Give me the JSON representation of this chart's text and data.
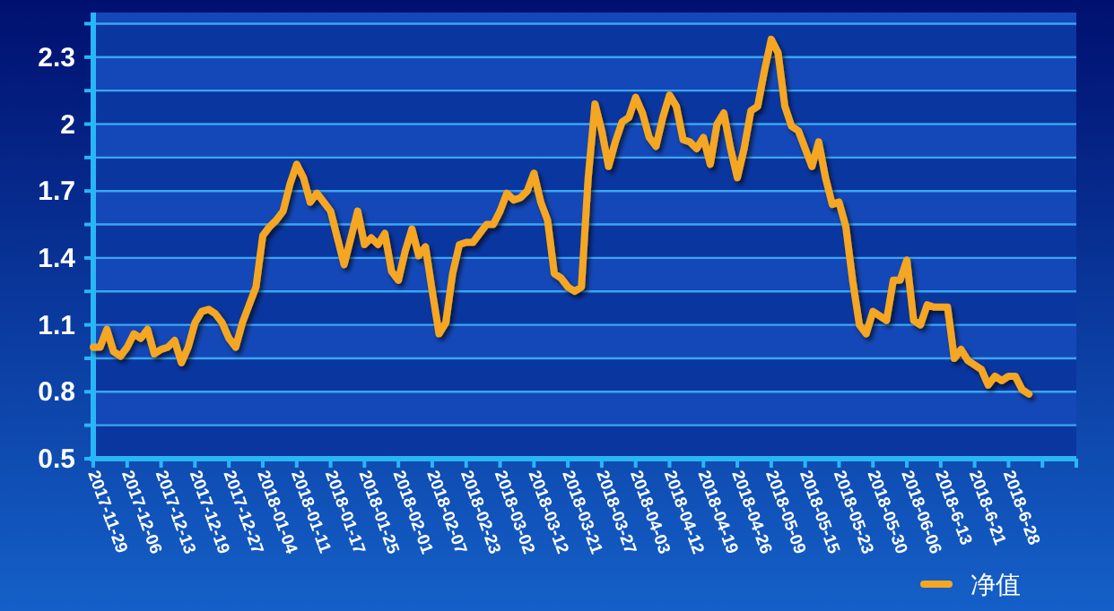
{
  "chart_data": {
    "type": "line",
    "categories": [
      "2017-11-29",
      null,
      null,
      null,
      null,
      "2017-12-06",
      null,
      null,
      null,
      null,
      "2017-12-13",
      null,
      null,
      null,
      null,
      "2017-12-19",
      null,
      null,
      null,
      null,
      "2017-12-27",
      null,
      null,
      null,
      null,
      "2018-01-04",
      null,
      null,
      null,
      null,
      "2018-01-11",
      null,
      null,
      null,
      null,
      "2018-01-17",
      null,
      null,
      null,
      null,
      "2018-01-25",
      null,
      null,
      null,
      null,
      "2018-02-01",
      null,
      null,
      null,
      null,
      "2018-02-07",
      null,
      null,
      null,
      null,
      "2018-02-23",
      null,
      null,
      null,
      null,
      "2018-03-02",
      null,
      null,
      null,
      null,
      "2018-03-12",
      null,
      null,
      null,
      null,
      "2018-03-21",
      null,
      null,
      null,
      null,
      "2018-03-27",
      null,
      null,
      null,
      null,
      "2018-04-03",
      null,
      null,
      null,
      null,
      "2018-04-12",
      null,
      null,
      null,
      null,
      "2018-04-19",
      null,
      null,
      null,
      null,
      "2018-04-26",
      null,
      null,
      null,
      null,
      "2018-05-09",
      null,
      null,
      null,
      null,
      "2018-05-15",
      null,
      null,
      null,
      null,
      "2018-05-23",
      null,
      null,
      null,
      null,
      "2018-05-30",
      null,
      null,
      null,
      null,
      "2018-06-06",
      null,
      null,
      null,
      null,
      "2018-6-13",
      null,
      null,
      null,
      null,
      "2018-6-21",
      null,
      null,
      null,
      null,
      "2018-6-28",
      null,
      null,
      null,
      null,
      null,
      null,
      null,
      null,
      null,
      null
    ],
    "series": [
      {
        "name": "净值",
        "color": "#f5a623",
        "values": [
          1.0,
          1.0,
          1.08,
          0.98,
          0.96,
          1.0,
          1.06,
          1.04,
          1.08,
          0.97,
          0.99,
          1.0,
          1.03,
          0.93,
          1.0,
          1.11,
          1.16,
          1.17,
          1.15,
          1.11,
          1.04,
          1.0,
          1.11,
          1.19,
          1.27,
          1.5,
          1.54,
          1.57,
          1.61,
          1.73,
          1.82,
          1.76,
          1.65,
          1.69,
          1.65,
          1.61,
          1.49,
          1.37,
          1.49,
          1.61,
          1.46,
          1.49,
          1.46,
          1.51,
          1.34,
          1.3,
          1.43,
          1.53,
          1.41,
          1.45,
          1.25,
          1.06,
          1.11,
          1.33,
          1.46,
          1.47,
          1.47,
          1.51,
          1.55,
          1.55,
          1.61,
          1.69,
          1.66,
          1.67,
          1.7,
          1.78,
          1.65,
          1.57,
          1.33,
          1.31,
          1.27,
          1.25,
          1.27,
          1.76,
          2.09,
          1.97,
          1.81,
          1.92,
          2.01,
          2.03,
          2.12,
          2.05,
          1.94,
          1.9,
          2.03,
          2.13,
          2.08,
          1.93,
          1.92,
          1.89,
          1.94,
          1.82,
          2.0,
          2.05,
          1.89,
          1.76,
          1.89,
          2.06,
          2.08,
          2.24,
          2.38,
          2.32,
          2.08,
          1.99,
          1.97,
          1.89,
          1.81,
          1.92,
          1.76,
          1.64,
          1.65,
          1.54,
          1.3,
          1.1,
          1.06,
          1.16,
          1.14,
          1.12,
          1.3,
          1.3,
          1.39,
          1.12,
          1.1,
          1.19,
          1.18,
          1.18,
          1.18,
          0.95,
          0.99,
          0.94,
          0.92,
          0.9,
          0.83,
          0.87,
          0.85,
          0.87,
          0.87,
          0.81,
          0.79,
          null,
          null,
          null,
          null,
          null,
          null,
          null
        ]
      }
    ],
    "ylim": [
      0.5,
      2.5
    ],
    "yticks": [
      0.5,
      {
        "value": 0.65,
        "label": null
      },
      0.8,
      {
        "value": 0.95,
        "label": null
      },
      1.1,
      {
        "value": 1.25,
        "label": null
      },
      1.4,
      {
        "value": 1.55,
        "label": null
      },
      1.7,
      {
        "value": 1.85,
        "label": null
      },
      2,
      {
        "value": 2.15,
        "label": null
      },
      2.3,
      {
        "value": 2.45,
        "label": null
      }
    ],
    "grid": "y",
    "legend": "bottom right",
    "marker": "none",
    "line_style": "solid"
  }
}
